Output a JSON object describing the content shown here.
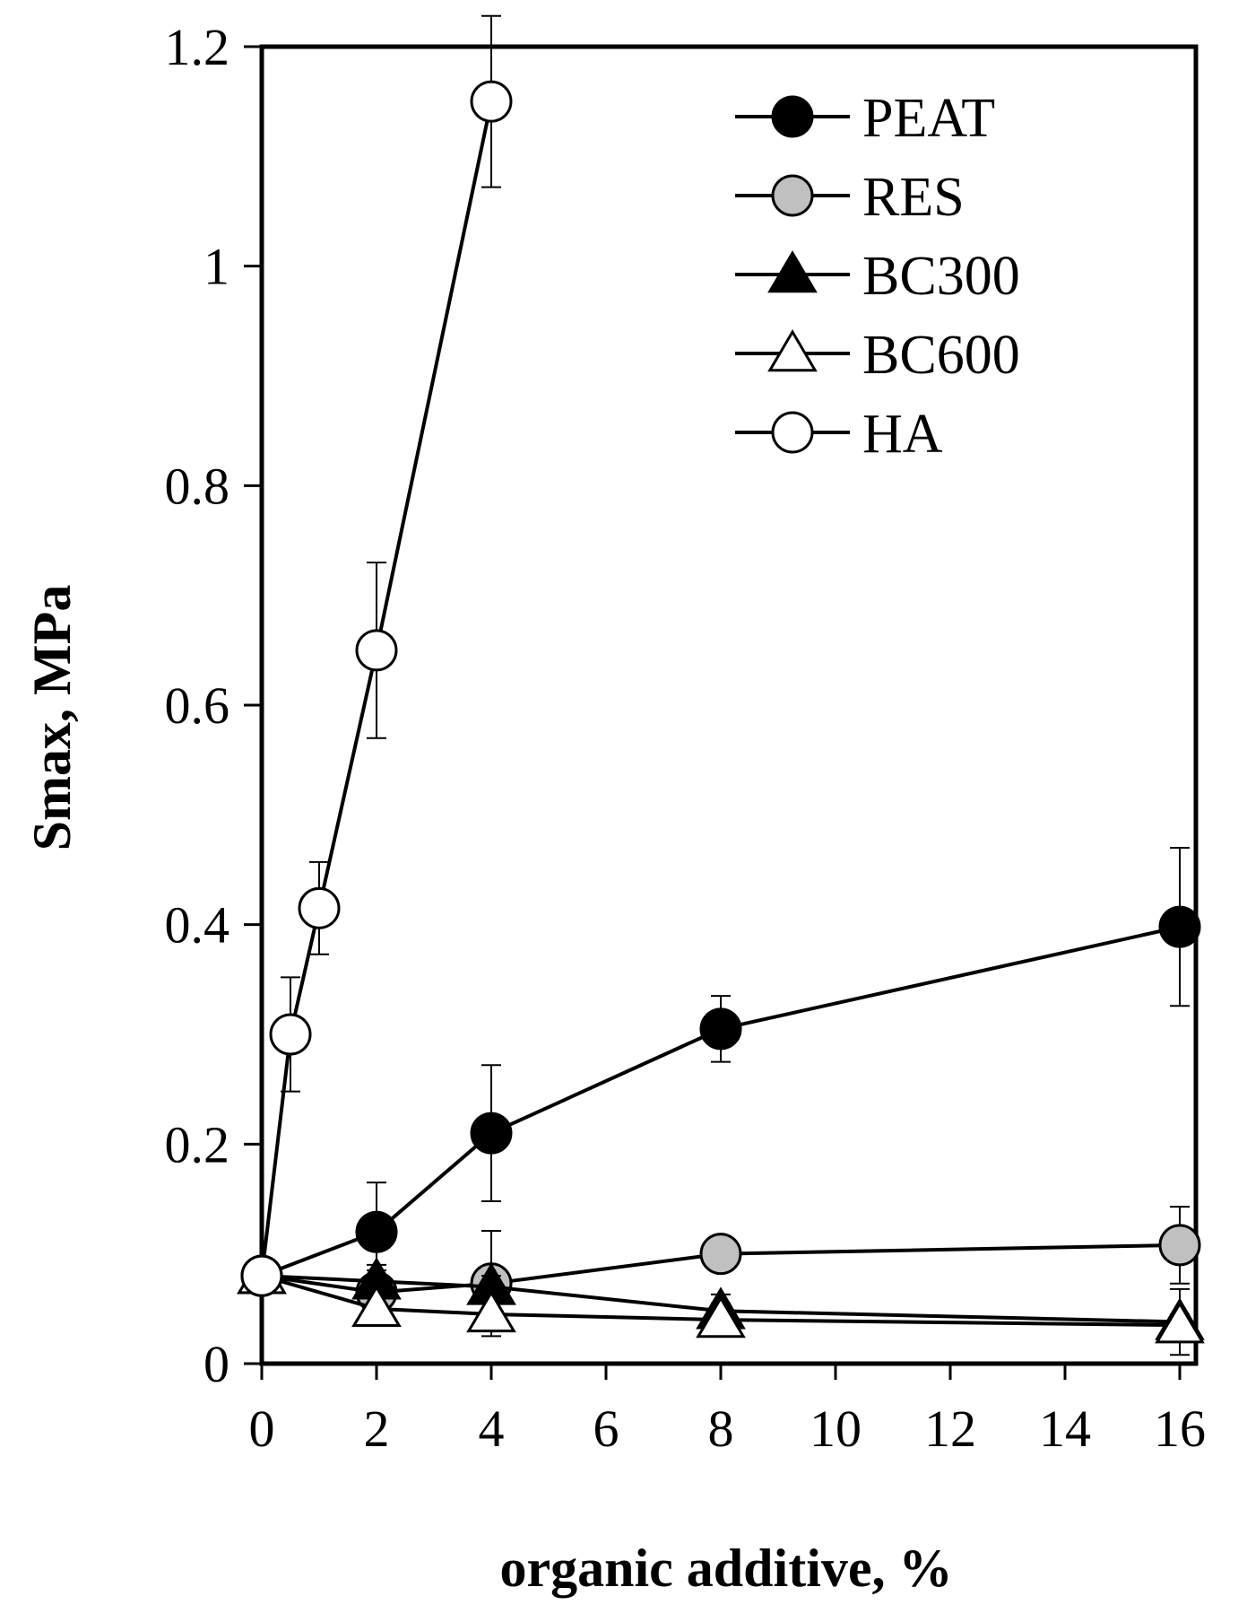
{
  "chart_data": {
    "type": "line",
    "title": "",
    "xlabel": "organic additive, %",
    "ylabel": "Smax, MPa",
    "xlim": [
      0,
      16
    ],
    "ylim": [
      0,
      1.2
    ],
    "x_ticks": [
      0,
      2,
      4,
      6,
      8,
      10,
      12,
      14,
      16
    ],
    "x_tick_labels": [
      "0",
      "2",
      "4",
      "6",
      "8",
      "10",
      "12",
      "14",
      "16"
    ],
    "y_ticks": [
      0,
      0.2,
      0.4,
      0.6,
      0.8,
      1,
      1.2
    ],
    "y_tick_labels": [
      "0",
      "0.2",
      "0.4",
      "0.6",
      "0.8",
      "1",
      "1.2"
    ],
    "legend_position": "top-right",
    "grid": false,
    "series": [
      {
        "name": "PEAT",
        "marker": "circle",
        "fill": "#000000",
        "points": [
          {
            "x": 0,
            "y": 0.08,
            "err": 0
          },
          {
            "x": 2,
            "y": 0.12,
            "err": 0.045
          },
          {
            "x": 4,
            "y": 0.21,
            "err": 0.062
          },
          {
            "x": 8,
            "y": 0.305,
            "err": 0.03
          },
          {
            "x": 16,
            "y": 0.398,
            "err": 0.072
          }
        ]
      },
      {
        "name": "RES",
        "marker": "circle",
        "fill": "#c0c0c0",
        "points": [
          {
            "x": 0,
            "y": 0.08,
            "err": 0
          },
          {
            "x": 2,
            "y": 0.065,
            "err": 0.02
          },
          {
            "x": 4,
            "y": 0.073,
            "err": 0.048
          },
          {
            "x": 8,
            "y": 0.1,
            "err": 0.015
          },
          {
            "x": 16,
            "y": 0.108,
            "err": 0.035
          }
        ]
      },
      {
        "name": "BC300",
        "marker": "triangle",
        "fill": "#000000",
        "points": [
          {
            "x": 0,
            "y": 0.08,
            "err": 0
          },
          {
            "x": 2,
            "y": 0.075,
            "err": 0.015
          },
          {
            "x": 4,
            "y": 0.07,
            "err": 0.01
          },
          {
            "x": 8,
            "y": 0.048,
            "err": 0.015
          },
          {
            "x": 16,
            "y": 0.038,
            "err": 0.03
          }
        ]
      },
      {
        "name": "BC600",
        "marker": "triangle",
        "fill": "#ffffff",
        "points": [
          {
            "x": 0,
            "y": 0.08,
            "err": 0
          },
          {
            "x": 2,
            "y": 0.05,
            "err": 0.01
          },
          {
            "x": 4,
            "y": 0.045,
            "err": 0.01
          },
          {
            "x": 8,
            "y": 0.04,
            "err": 0.015
          },
          {
            "x": 16,
            "y": 0.035,
            "err": 0.01
          }
        ]
      },
      {
        "name": "HA",
        "marker": "circle",
        "fill": "#ffffff",
        "points": [
          {
            "x": 0,
            "y": 0.08,
            "err": 0
          },
          {
            "x": 0.5,
            "y": 0.3,
            "err": 0.052
          },
          {
            "x": 1,
            "y": 0.415,
            "err": 0.042
          },
          {
            "x": 2,
            "y": 0.65,
            "err": 0.08
          },
          {
            "x": 4,
            "y": 1.15,
            "err": 0.078
          }
        ]
      }
    ]
  }
}
